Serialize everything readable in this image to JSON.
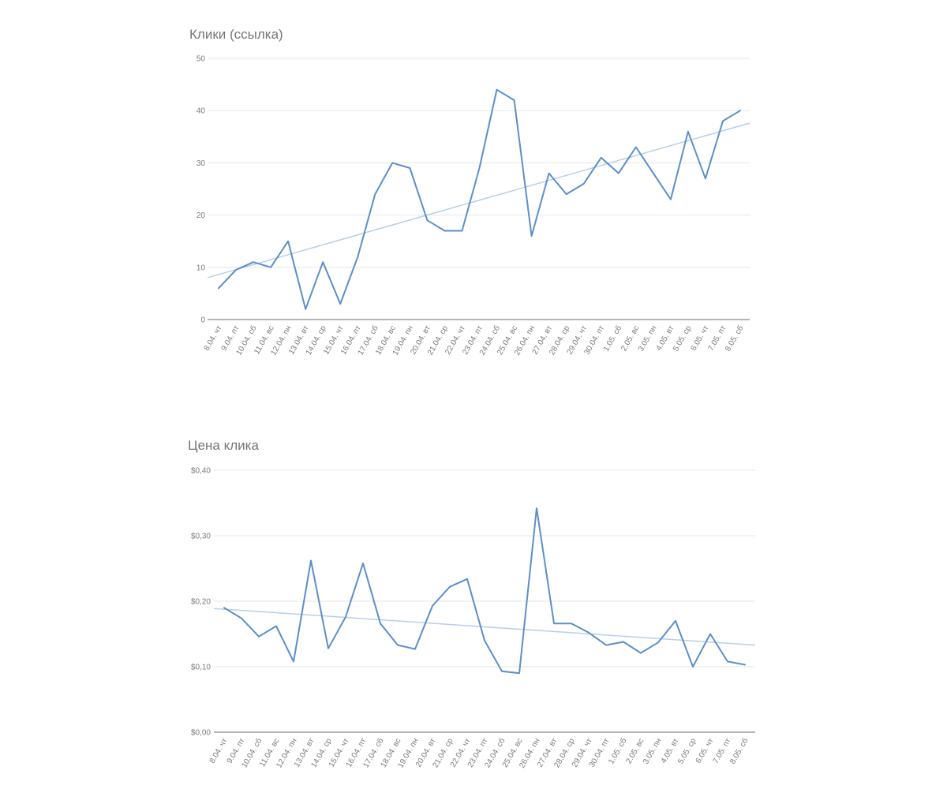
{
  "chart_data": [
    {
      "type": "line",
      "title": "Клики (ссылка)",
      "categories": [
        "8.04. чт",
        "9.04. пт",
        "10.04. сб",
        "11.04. вс",
        "12.04. пн",
        "13.04. вт",
        "14.04. ср",
        "15.04. чт",
        "16.04. пт",
        "17.04. сб",
        "18.04. вс",
        "19.04. пн",
        "20.04. вт",
        "21.04. ср",
        "22.04. чт",
        "23.04. пт",
        "24.04. сб",
        "25.04. вс",
        "26.04. пн",
        "27.04. вт",
        "28.04. ср",
        "29.04. чт",
        "30.04. пт",
        "1.05. сб",
        "2.05. вс",
        "3.05. пн",
        "4.05. вт",
        "5.05. ср",
        "6.05. чт",
        "7.05. пт",
        "8.05. сб"
      ],
      "values": [
        6,
        9.5,
        11,
        10,
        15,
        2,
        11,
        3,
        12,
        24,
        30,
        29,
        19,
        17,
        17,
        29,
        44,
        42,
        16,
        28,
        24,
        26,
        31,
        28,
        33,
        28,
        23,
        36,
        27,
        38,
        40
      ],
      "trendline": true,
      "ylim": [
        0,
        50
      ],
      "yticks": [
        0,
        10,
        20,
        30,
        40,
        50
      ],
      "ytick_labels": [
        "0",
        "10",
        "20",
        "30",
        "40",
        "50"
      ],
      "xlabel": "",
      "ylabel": "",
      "grid": true,
      "legend": "none",
      "colors": {
        "line": "#5b8fc9",
        "trend": "#b7cfe9",
        "grid": "#e6e6e6",
        "baseline": "#9e9e9e"
      }
    },
    {
      "type": "line",
      "title": "Цена клика",
      "categories": [
        "8.04. чт",
        "9.04. пт",
        "10.04. сб",
        "11.04. вс",
        "12.04. пн",
        "13.04. вт",
        "14.04. ср",
        "15.04. чт",
        "16.04. пт",
        "17.04. сб",
        "18.04. вс",
        "19.04. пн",
        "20.04. вт",
        "21.04. ср",
        "22.04. чт",
        "23.04. пт",
        "24.04. сб",
        "25.04. вс",
        "26.04. пн",
        "27.04. вт",
        "28.04. ср",
        "29.04. чт",
        "30.04. пт",
        "1.05. сб",
        "2.05. вс",
        "3.05. пн",
        "4.05. вт",
        "5.05. ср",
        "6.05. чт",
        "7.05. пт",
        "8.05. сб"
      ],
      "values": [
        0.19,
        0.174,
        0.146,
        0.162,
        0.108,
        0.262,
        0.128,
        0.176,
        0.258,
        0.166,
        0.133,
        0.127,
        0.193,
        0.222,
        0.234,
        0.14,
        0.093,
        0.09,
        0.342,
        0.166,
        0.166,
        0.152,
        0.133,
        0.138,
        0.121,
        0.137,
        0.17,
        0.1,
        0.15,
        0.108,
        0.103
      ],
      "trendline": true,
      "ylim": [
        0,
        0.4
      ],
      "yticks": [
        0,
        0.1,
        0.2,
        0.3,
        0.4
      ],
      "ytick_labels": [
        "$0,00",
        "$0,10",
        "$0,20",
        "$0,30",
        "$0,40"
      ],
      "xlabel": "",
      "ylabel": "",
      "grid": true,
      "legend": "none",
      "colors": {
        "line": "#5b8fc9",
        "trend": "#b7cfe9",
        "grid": "#e6e6e6",
        "baseline": "#9e9e9e"
      }
    }
  ]
}
